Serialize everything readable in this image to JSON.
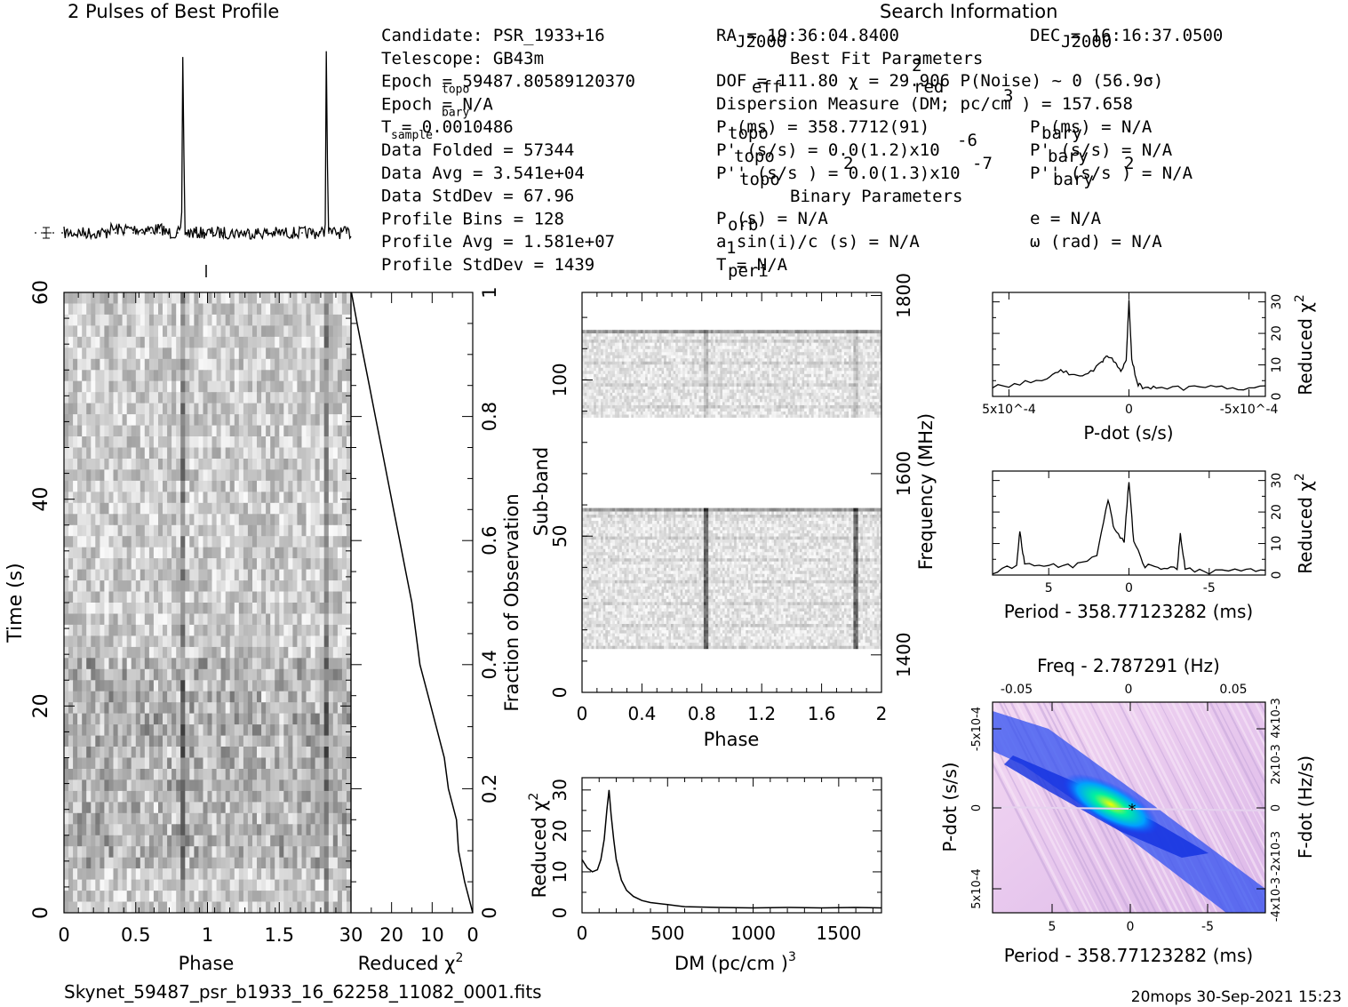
{
  "header": {
    "profile_title": "2 Pulses of Best Profile",
    "search_title": "Search Information"
  },
  "info_left": [
    "Candidate:  PSR_1933+16",
    "Telescope:  GB43m",
    "Epoch = 59487.80589120370",
    "Epoch = N/A",
    "T       =  0.0010486",
    "Data Folded   =  57344",
    "Data Avg      =  3.541e+04",
    "Data StdDev   =  67.96",
    "Profile Bins  =  128",
    "Profile Avg   =  1.581e+07",
    "Profile StdDev =  1439"
  ],
  "info_left_subs": [
    "topo",
    "bary",
    "sample"
  ],
  "info_mid": {
    "ra": "RA    = 19:36:04.8400",
    "ra_sub": "J2000",
    "best_fit": "Best Fit Parameters",
    "dof": "DOF    = 111.80  χ    = 29.906  P(Noise) ~ 0   (56.9σ)",
    "dm": "Dispersion Measure (DM; pc/cm ) = 157.658",
    "ptopo": "P    (ms) =  358.7712(91)",
    "pdtopo": "P'    (s/s) = 0.0(1.2)x10",
    "pddtopo": "P''    (s/s ) = 0.0(1.3)x10",
    "binary": "Binary Parameters",
    "porb": "P    (s) = N/A",
    "a1": "a sin(i)/c (s) = N/A",
    "tperi": "T     = N/A",
    "exp_pd": "-6",
    "exp_pdd": "-7"
  },
  "info_right": {
    "dec": "DEC    = 16:16:37.0500",
    "dec_sub": "J2000",
    "pbary": "P    (ms) = N/A",
    "pdbary": "P'    (s/s) = N/A",
    "pddbary": "P''    (s/s ) = N/A",
    "e": "e = N/A",
    "omega": "ω (rad) = N/A"
  },
  "subs": {
    "eff": "eff",
    "red": "red",
    "topo": "topo",
    "bary": "bary",
    "orb": "orb",
    "peri": "peri",
    "one": "1",
    "two": "2",
    "three": "3"
  },
  "axes": {
    "time_ylabel": "Time (s)",
    "phase_xlabel": "Phase",
    "redchi_xlabel": "Reduced χ",
    "fraction_ylabel": "Fraction of Observation",
    "subband_ylabel": "Sub-band",
    "freq_ylabel": "Frequency (MHz)",
    "dm_xlabel": "DM (pc/cm )",
    "redchi_ylabel": "Reduced χ",
    "pdot_xlabel": "P-dot (s/s)",
    "period_xlabel": "Period - 358.77123282 (ms)",
    "freq_top_label": "Freq - 2.787291 (Hz)",
    "pdot_ylabel": "P-dot (s/s)",
    "fdot_ylabel": "F-dot (Hz/s)"
  },
  "footer": {
    "filename": "Skynet_59487_psr_b1933_16_62258_11082_0001.fits",
    "stamp": "20mops 30-Sep-2021 15:23"
  },
  "chart_data": [
    {
      "type": "line",
      "title": "2 Pulses of Best Profile",
      "x_phase": [
        0,
        2
      ],
      "peaks_phase": [
        0.83,
        1.83
      ],
      "baseline": "noise"
    },
    {
      "type": "heatmap",
      "name": "time-phase",
      "xlabel": "Phase",
      "ylabel": "Time (s)",
      "xlim": [
        0,
        2
      ],
      "ylim": [
        0,
        60
      ],
      "xticks": [
        "0",
        "0.5",
        "1",
        "1.5"
      ],
      "yticks": [
        "0",
        "20",
        "40",
        "60"
      ],
      "pulse_phase": [
        0.83,
        1.83
      ]
    },
    {
      "type": "line",
      "name": "reduced-chi2-vs-fraction",
      "xlabel": "Reduced χ2",
      "ylabel": "Fraction of Observation",
      "xlim": [
        30,
        0
      ],
      "ylim": [
        0,
        1
      ],
      "xticks": [
        "30",
        "20",
        "10",
        "0"
      ],
      "yticks": [
        "0",
        "0.2",
        "0.4",
        "0.6",
        "0.8",
        "1"
      ],
      "fraction": [
        0,
        0.05,
        0.1,
        0.15,
        0.2,
        0.25,
        0.3,
        0.35,
        0.4,
        0.45,
        0.5,
        0.55,
        0.6,
        0.65,
        0.7,
        0.75,
        0.8,
        0.85,
        0.9,
        0.95,
        1.0
      ],
      "redchi": [
        0,
        2,
        3.5,
        4,
        6,
        7,
        9,
        11,
        13,
        14,
        15,
        16.5,
        18,
        19.5,
        21,
        22.5,
        24,
        25.5,
        27,
        28.5,
        29.9
      ]
    },
    {
      "type": "heatmap",
      "name": "subband-phase",
      "xlabel": "Phase",
      "ylabel": "Sub-band",
      "y2label": "Frequency (MHz)",
      "xlim": [
        0,
        2
      ],
      "ylim": [
        0,
        128
      ],
      "xticks": [
        "0",
        "0.4",
        "0.8",
        "1.2",
        "1.6",
        "2"
      ],
      "yticks": [
        "0",
        "50",
        "100"
      ],
      "y2ticks": [
        "1400",
        "1600",
        "1800"
      ],
      "filled_bands": [
        [
          14,
          59
        ],
        [
          88,
          116
        ]
      ],
      "pulse_phase": [
        0.83,
        1.83
      ]
    },
    {
      "type": "line",
      "name": "dm-curve",
      "xlabel": "DM (pc/cm3)",
      "ylabel": "Reduced χ2",
      "xlim": [
        0,
        1750
      ],
      "ylim": [
        0,
        33
      ],
      "xticks": [
        "0",
        "500",
        "1000",
        "1500"
      ],
      "yticks": [
        "0",
        "10",
        "20",
        "30"
      ],
      "x": [
        0,
        30,
        60,
        90,
        110,
        130,
        145,
        157.658,
        170,
        185,
        200,
        230,
        260,
        300,
        350,
        400,
        500,
        600,
        800,
        1000,
        1200,
        1400,
        1600,
        1750
      ],
      "y": [
        13,
        11,
        10,
        10.5,
        13,
        18,
        25,
        30,
        24,
        18,
        13,
        8,
        5.5,
        4,
        3,
        2.5,
        2,
        1.5,
        1.3,
        1.2,
        1.3,
        1.2,
        1.3,
        1.2
      ]
    },
    {
      "type": "line",
      "name": "pdot-curve",
      "xlabel": "P-dot (s/s)",
      "ylabel": "Reduced χ2",
      "xticks": [
        "5x10^-4",
        "0",
        "-5x10^-4"
      ],
      "yticks": [
        "0",
        "10",
        "20",
        "30"
      ],
      "x": [
        5,
        4,
        3,
        2.5,
        2,
        1.5,
        1,
        0.8,
        0.5,
        0.3,
        0.1,
        0,
        -0.1,
        -0.3,
        -0.5,
        -1,
        -2,
        -3,
        -4,
        -5
      ],
      "y": [
        3,
        4,
        6,
        8,
        7,
        7,
        11,
        13,
        11,
        8,
        12,
        31,
        12,
        4,
        3,
        3,
        2.5,
        3,
        2.5,
        3
      ]
    },
    {
      "type": "line",
      "name": "period-curve",
      "xlabel": "Period - 358.77123282 (ms)",
      "ylabel": "Reduced χ2",
      "xticks": [
        "5",
        "0",
        "-5"
      ],
      "yticks": [
        "0",
        "10",
        "20",
        "30"
      ],
      "x": [
        8.5,
        7,
        6.8,
        6.5,
        5,
        3.5,
        2,
        1.3,
        0.9,
        0.3,
        0,
        -0.3,
        -1,
        -2,
        -3,
        -3.2,
        -3.5,
        -5,
        -7,
        -8.5
      ],
      "y": [
        1,
        3,
        14,
        3,
        3,
        3,
        6,
        24,
        14,
        11,
        30,
        10,
        3,
        2,
        2,
        13,
        2,
        1,
        2,
        1
      ]
    },
    {
      "type": "heatmap",
      "name": "period-pdot-plane",
      "xlabel": "Period - 358.77123282 (ms)",
      "x2label": "Freq - 2.787291 (Hz)",
      "ylabel": "P-dot (s/s)",
      "y2label": "F-dot (Hz/s)",
      "xticks": [
        "5",
        "0",
        "-5"
      ],
      "x2ticks": [
        "-0.05",
        "0",
        "0.05"
      ],
      "yticks": [
        "-5x10^-4",
        "0",
        "5x10^-4"
      ],
      "y2ticks": [
        "4x10^-3",
        "2x10^-3",
        "0",
        "-2x10^-3",
        "-4x10^-3"
      ],
      "best": [
        0,
        0
      ]
    }
  ]
}
